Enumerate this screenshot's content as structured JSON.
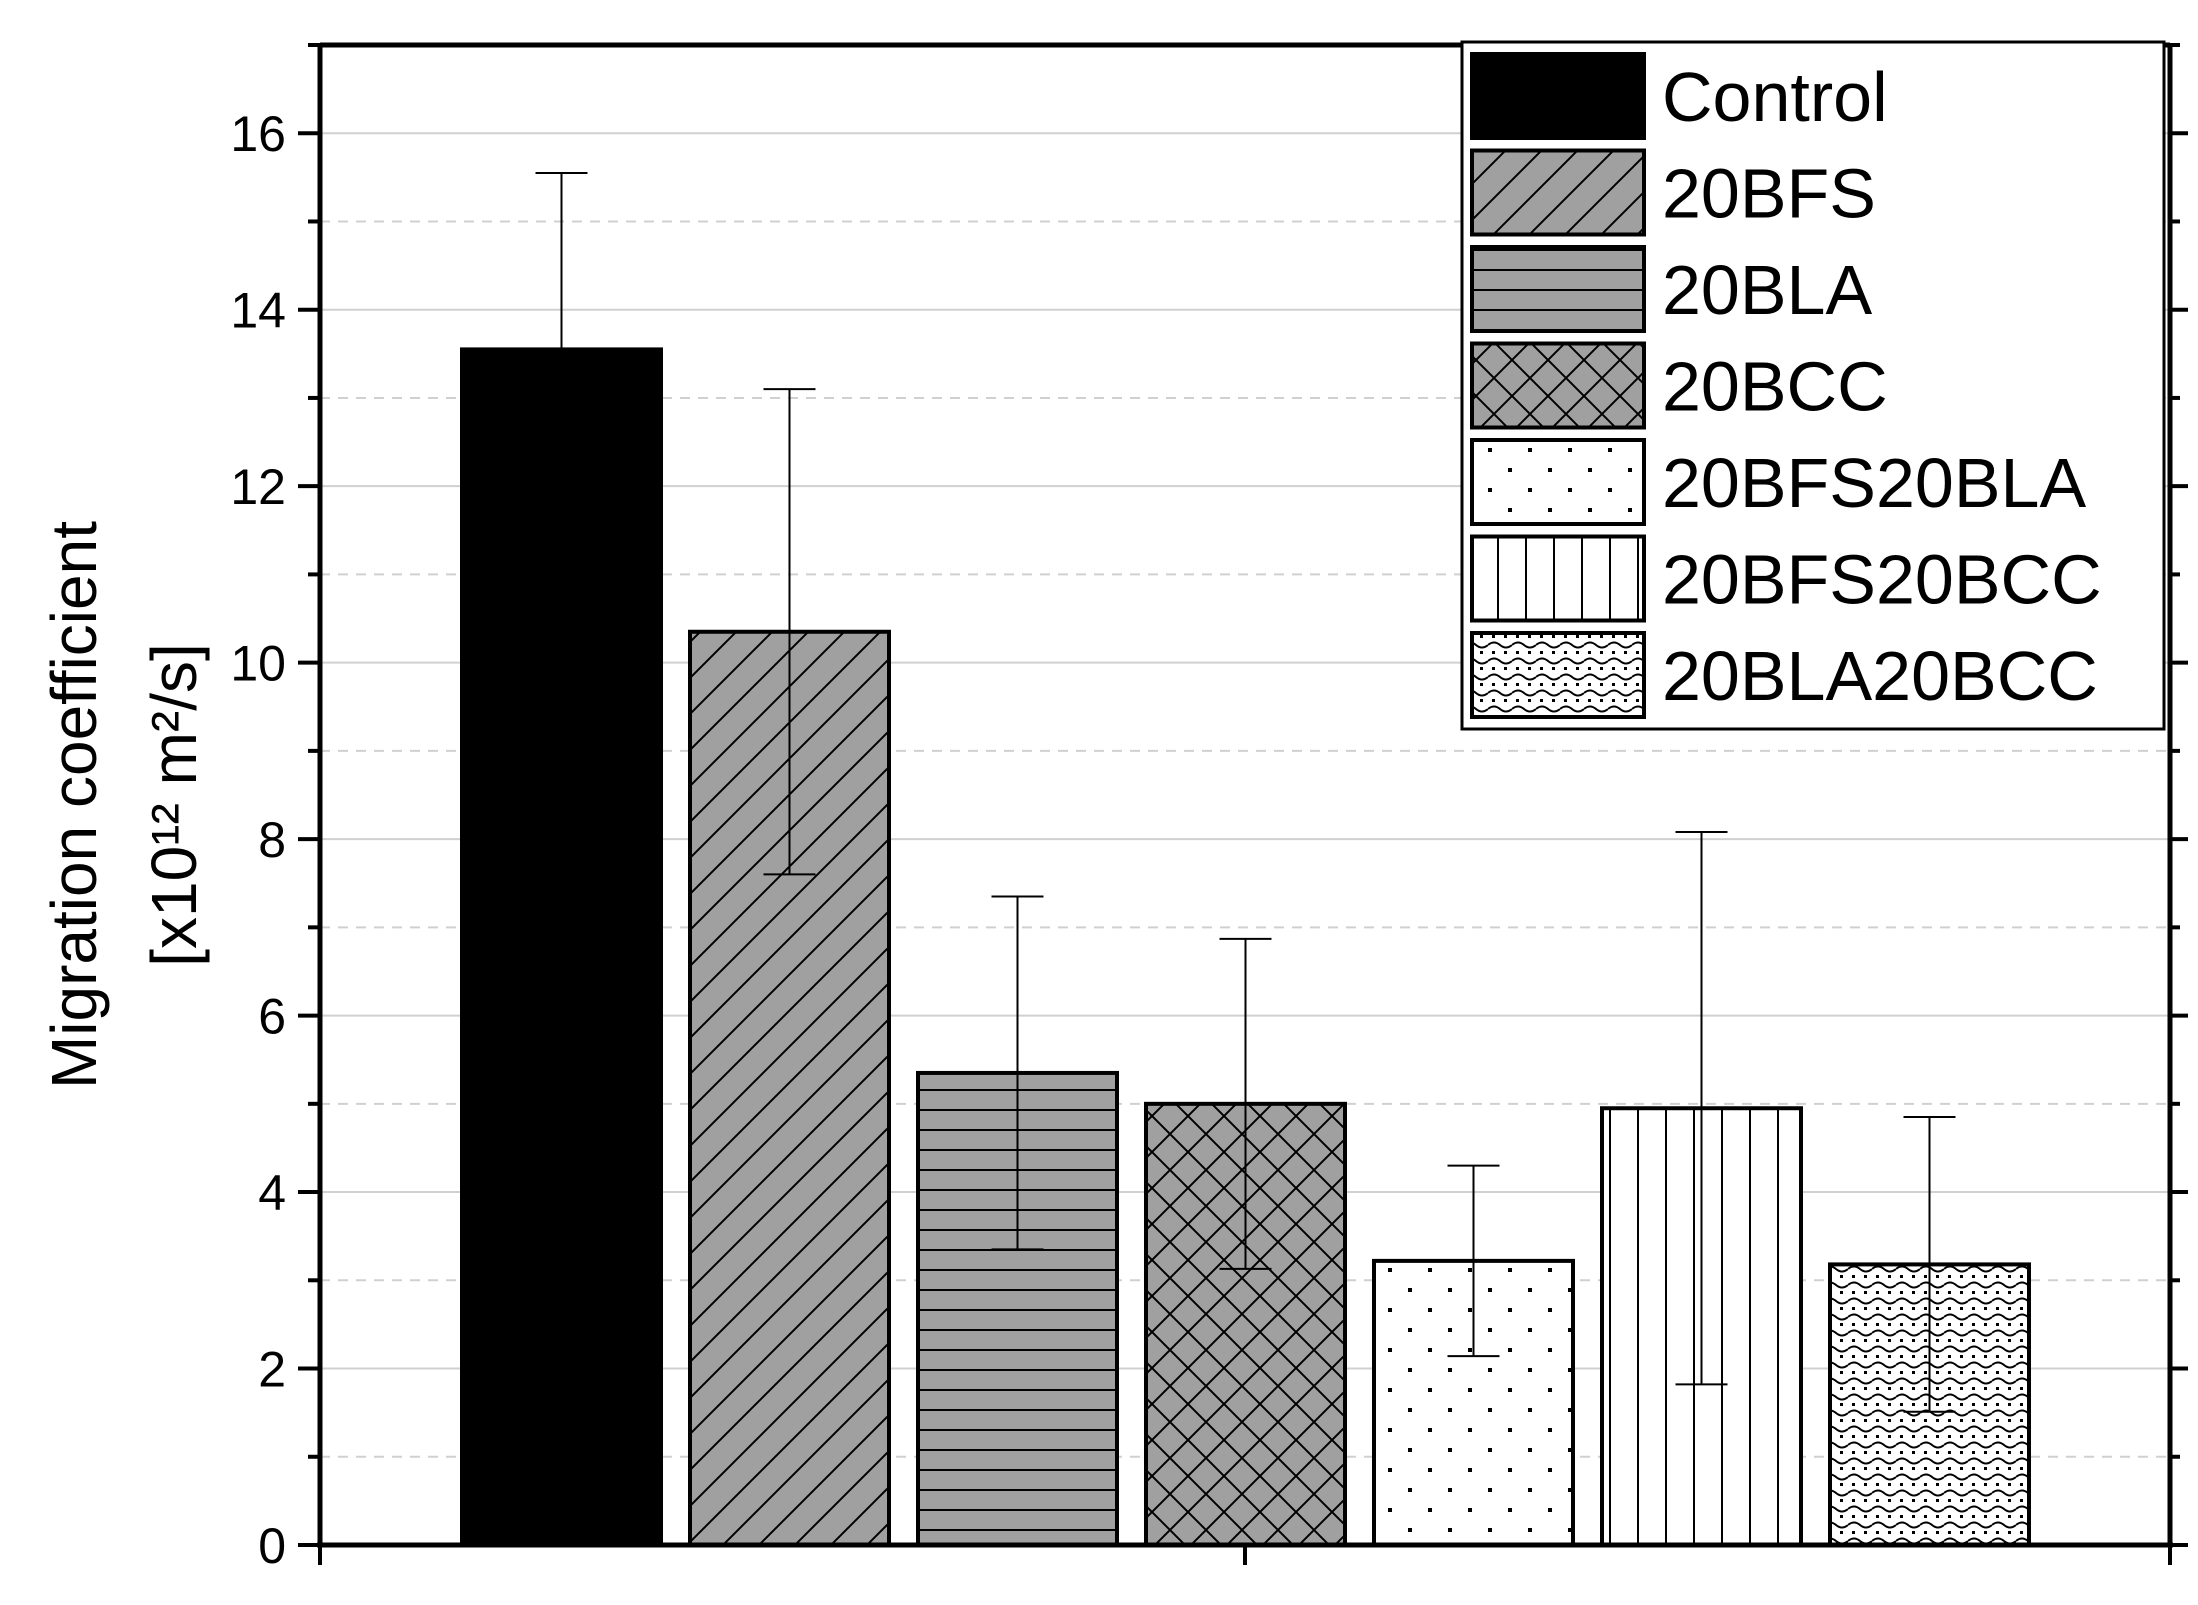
{
  "chart_data": {
    "type": "bar",
    "title": "",
    "xlabel": "",
    "ylabel_line1": "Migration coefficient",
    "ylabel_line2": "[x10¹² m²/s]",
    "ylim": [
      0,
      17
    ],
    "yticks": [
      0,
      2,
      4,
      6,
      8,
      10,
      12,
      14,
      16
    ],
    "ytick_labels": [
      "0",
      "2",
      "4",
      "6",
      "8",
      "10",
      "12",
      "14",
      "16"
    ],
    "grid": true,
    "legend_position": "top-right",
    "series": [
      {
        "name": "Control",
        "value": 13.55,
        "error": 2.0,
        "fill": "#000000",
        "pattern": "solid"
      },
      {
        "name": "20BFS",
        "value": 10.35,
        "error": 2.75,
        "fill": "#a0a0a0",
        "pattern": "diagonal"
      },
      {
        "name": "20BLA",
        "value": 5.35,
        "error": 2.0,
        "fill": "#a0a0a0",
        "pattern": "horizontal"
      },
      {
        "name": "20BCC",
        "value": 5.0,
        "error": 1.87,
        "fill": "#a0a0a0",
        "pattern": "crosshatch"
      },
      {
        "name": "20BFS20BLA",
        "value": 3.22,
        "error": 1.08,
        "fill": "#ffffff",
        "pattern": "dots"
      },
      {
        "name": "20BFS20BCC",
        "value": 4.95,
        "error": 3.13,
        "fill": "#ffffff",
        "pattern": "vertical"
      },
      {
        "name": "20BLA20BCC",
        "value": 3.18,
        "error": 1.67,
        "fill": "#ffffff",
        "pattern": "wave"
      }
    ]
  }
}
